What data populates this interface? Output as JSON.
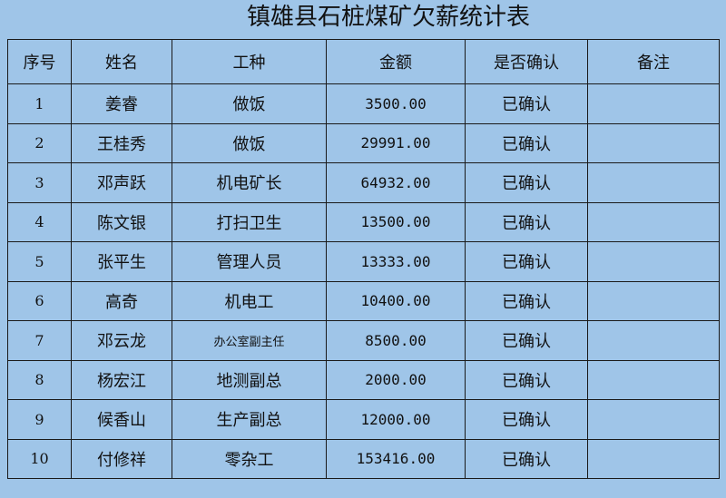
{
  "title": "镇雄县石桩煤矿欠薪统计表",
  "headers": [
    "序号",
    "姓名",
    "工种",
    "金额",
    "是否确认",
    "备注"
  ],
  "rows": [
    {
      "no": "1",
      "name": "姜睿",
      "job": "做饭",
      "amount": "3500.00",
      "confirmed": "已确认",
      "note": ""
    },
    {
      "no": "2",
      "name": "王桂秀",
      "job": "做饭",
      "amount": "29991.00",
      "confirmed": "已确认",
      "note": ""
    },
    {
      "no": "3",
      "name": "邓声跃",
      "job": "机电矿长",
      "amount": "64932.00",
      "confirmed": "已确认",
      "note": ""
    },
    {
      "no": "4",
      "name": "陈文银",
      "job": "打扫卫生",
      "amount": "13500.00",
      "confirmed": "已确认",
      "note": ""
    },
    {
      "no": "5",
      "name": "张平生",
      "job": "管理人员",
      "amount": "13333.00",
      "confirmed": "已确认",
      "note": ""
    },
    {
      "no": "6",
      "name": "高奇",
      "job": "机电工",
      "amount": "10400.00",
      "confirmed": "已确认",
      "note": ""
    },
    {
      "no": "7",
      "name": "邓云龙",
      "job": "办公室副主任",
      "amount": "8500.00",
      "confirmed": "已确认",
      "note": ""
    },
    {
      "no": "8",
      "name": "杨宏江",
      "job": "地测副总",
      "amount": "2000.00",
      "confirmed": "已确认",
      "note": ""
    },
    {
      "no": "9",
      "name": "候香山",
      "job": "生产副总",
      "amount": "12000.00",
      "confirmed": "已确认",
      "note": ""
    },
    {
      "no": "10",
      "name": "付修祥",
      "job": "零杂工",
      "amount": "153416.00",
      "confirmed": "已确认",
      "note": ""
    }
  ]
}
